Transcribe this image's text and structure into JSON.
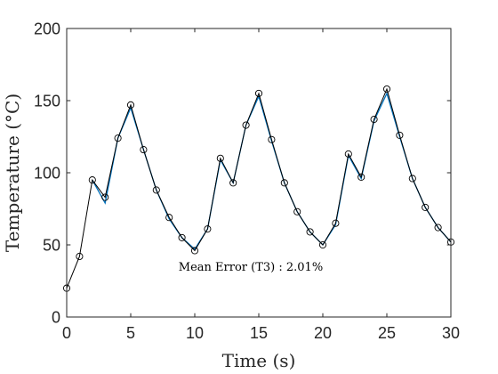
{
  "chart_data": {
    "type": "line",
    "title": "",
    "xlabel": "Time (s)",
    "ylabel": "Temperature (°C)",
    "xlim": [
      0,
      30
    ],
    "ylim": [
      0,
      200
    ],
    "xticks": [
      "0",
      "5",
      "10",
      "15",
      "20",
      "25",
      "30"
    ],
    "yticks": [
      "0",
      "50",
      "100",
      "150",
      "200"
    ],
    "grid": false,
    "legend": "none",
    "annotation": "Mean Error (T3) : 2.01%",
    "x": [
      0,
      1,
      2,
      3,
      4,
      5,
      6,
      7,
      8,
      9,
      10,
      11,
      12,
      13,
      14,
      15,
      16,
      17,
      18,
      19,
      20,
      21,
      22,
      23,
      24,
      25,
      26,
      27,
      28,
      29,
      30
    ],
    "series": [
      {
        "color": "#0072bd",
        "values": [
          null,
          null,
          95,
          79,
          124,
          145,
          116,
          88,
          68,
          55,
          47,
          61,
          109,
          93,
          133,
          153,
          122,
          93,
          73,
          59,
          50,
          64,
          112,
          96,
          136,
          155,
          125,
          96,
          76,
          62,
          52
        ]
      },
      {
        "color": "#000000",
        "marker": "circle",
        "values": [
          20,
          42,
          95,
          83,
          124,
          147,
          116,
          88,
          69,
          55,
          46,
          61,
          110,
          93,
          133,
          155,
          123,
          93,
          73,
          59,
          50,
          65,
          113,
          97,
          137,
          158,
          126,
          96,
          76,
          62,
          52
        ]
      }
    ]
  }
}
